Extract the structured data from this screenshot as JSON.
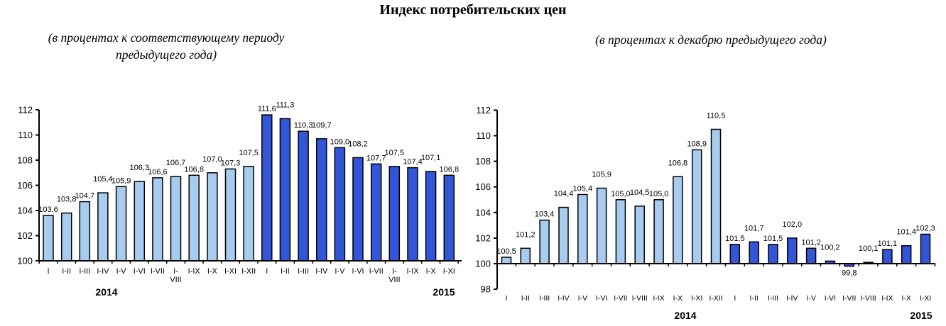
{
  "header": {
    "title": "Индекс потребительских цен",
    "left_subtitle_line1": "(в процентах к соответствующему периоду",
    "left_subtitle_line2": "предыдущего года)",
    "right_subtitle": "(в процентах к декабрю  предыдущего года)"
  },
  "colors": {
    "bar_2014": "#a8cbf0",
    "bar_2015": "#3355d9",
    "bar_border": "#000000"
  },
  "chart_data": [
    {
      "type": "bar",
      "title": "(в процентах к соответствующему периоду предыдущего года)",
      "xlabel": "",
      "ylabel": "",
      "ylim": [
        100,
        112
      ],
      "ytick_step": 2,
      "baseline": 100,
      "grid": false,
      "legend_position": "none",
      "groups": [
        {
          "year": "2014",
          "color": "#a8cbf0",
          "categories": [
            "I",
            "I-II",
            "I-III",
            "I-IV",
            "I-V",
            "I-VI",
            "I-VII",
            "I-VIII",
            "I-IX",
            "I-X",
            "I-XI",
            "I-XII"
          ],
          "values": [
            103.6,
            103.8,
            104.7,
            105.4,
            105.9,
            106.3,
            106.6,
            106.7,
            106.8,
            107.0,
            107.3,
            107.5
          ]
        },
        {
          "year": "2015",
          "color": "#3355d9",
          "categories": [
            "I",
            "I-II",
            "I-III",
            "I-IV",
            "I-V",
            "I-VI",
            "I-VII",
            "I-VIII",
            "I-IX",
            "I-X",
            "I-XI"
          ],
          "values": [
            111.6,
            111.3,
            110.3,
            109.7,
            109.0,
            108.2,
            107.7,
            107.5,
            107.4,
            107.1,
            106.8
          ]
        }
      ]
    },
    {
      "type": "bar",
      "title": "(в процентах к декабрю предыдущего года)",
      "xlabel": "",
      "ylabel": "",
      "ylim": [
        98,
        112
      ],
      "ytick_step": 2,
      "baseline": 100,
      "grid": false,
      "legend_position": "none",
      "groups": [
        {
          "year": "2014",
          "color": "#a8cbf0",
          "categories": [
            "I",
            "I-II",
            "I-III",
            "I-IV",
            "I-V",
            "I-VI",
            "I-VII",
            "I-VIII",
            "I-IX",
            "I-X",
            "I-XI",
            "I-XII"
          ],
          "values": [
            100.5,
            101.2,
            103.4,
            104.4,
            105.4,
            105.9,
            105.0,
            104.5,
            105.0,
            106.8,
            108.9,
            110.5
          ]
        },
        {
          "year": "2015",
          "color": "#3355d9",
          "categories": [
            "I",
            "I-II",
            "I-III",
            "I-IV",
            "I-V",
            "I-VI",
            "I-VII",
            "I-VIII",
            "I-IX",
            "I-X",
            "I-XI"
          ],
          "values": [
            101.5,
            101.7,
            101.5,
            102.0,
            101.2,
            100.2,
            99.8,
            100.1,
            101.1,
            101.4,
            102.3
          ]
        }
      ]
    }
  ]
}
